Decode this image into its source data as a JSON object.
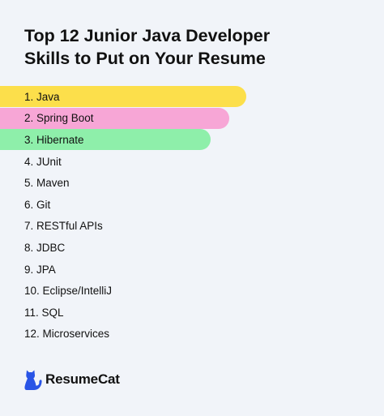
{
  "title": {
    "line1": "Top 12 Junior Java Developer",
    "line2": "Skills to Put on Your Resume"
  },
  "skills": [
    {
      "label": "1. Java",
      "bar": 1.0,
      "color": "#fcdf4b"
    },
    {
      "label": "2. Spring Boot",
      "bar": 0.93,
      "color": "#f7a6d6"
    },
    {
      "label": "3. Hibernate",
      "bar": 0.855,
      "color": "#8eefaa"
    },
    {
      "label": "4. JUnit"
    },
    {
      "label": "5. Maven"
    },
    {
      "label": "6. Git"
    },
    {
      "label": "7. RESTful APIs"
    },
    {
      "label": "8. JDBC"
    },
    {
      "label": "9. JPA"
    },
    {
      "label": "10. Eclipse/IntelliJ"
    },
    {
      "label": "11. SQL"
    },
    {
      "label": "12. Microservices"
    }
  ],
  "brand": {
    "name": "ResumeCat",
    "icon": "cat-icon",
    "color": "#2954e6"
  }
}
